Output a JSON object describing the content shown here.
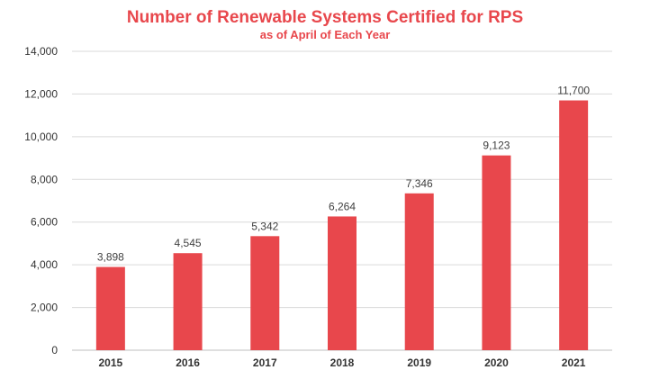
{
  "chart_data": {
    "type": "bar",
    "title": "Number of Renewable Systems Certified for RPS",
    "subtitle": "as of April of Each Year",
    "xlabel": "",
    "ylabel": "",
    "categories": [
      "2015",
      "2016",
      "2017",
      "2018",
      "2019",
      "2020",
      "2021"
    ],
    "values": [
      3898,
      4545,
      5342,
      6264,
      7346,
      9123,
      11700
    ],
    "value_labels": [
      "3,898",
      "4,545",
      "5,342",
      "6,264",
      "7,346",
      "9,123",
      "11,700"
    ],
    "ylim": [
      0,
      14000
    ],
    "yticks": [
      0,
      2000,
      4000,
      6000,
      8000,
      10000,
      12000,
      14000
    ],
    "ytick_labels": [
      "0",
      "2,000",
      "4,000",
      "6,000",
      "8,000",
      "10,000",
      "12,000",
      "14,000"
    ],
    "grid": true,
    "legend": "none",
    "bar_color": "#e8474c",
    "title_color": "#e8474c",
    "grid_color": "#d9d9d9"
  }
}
